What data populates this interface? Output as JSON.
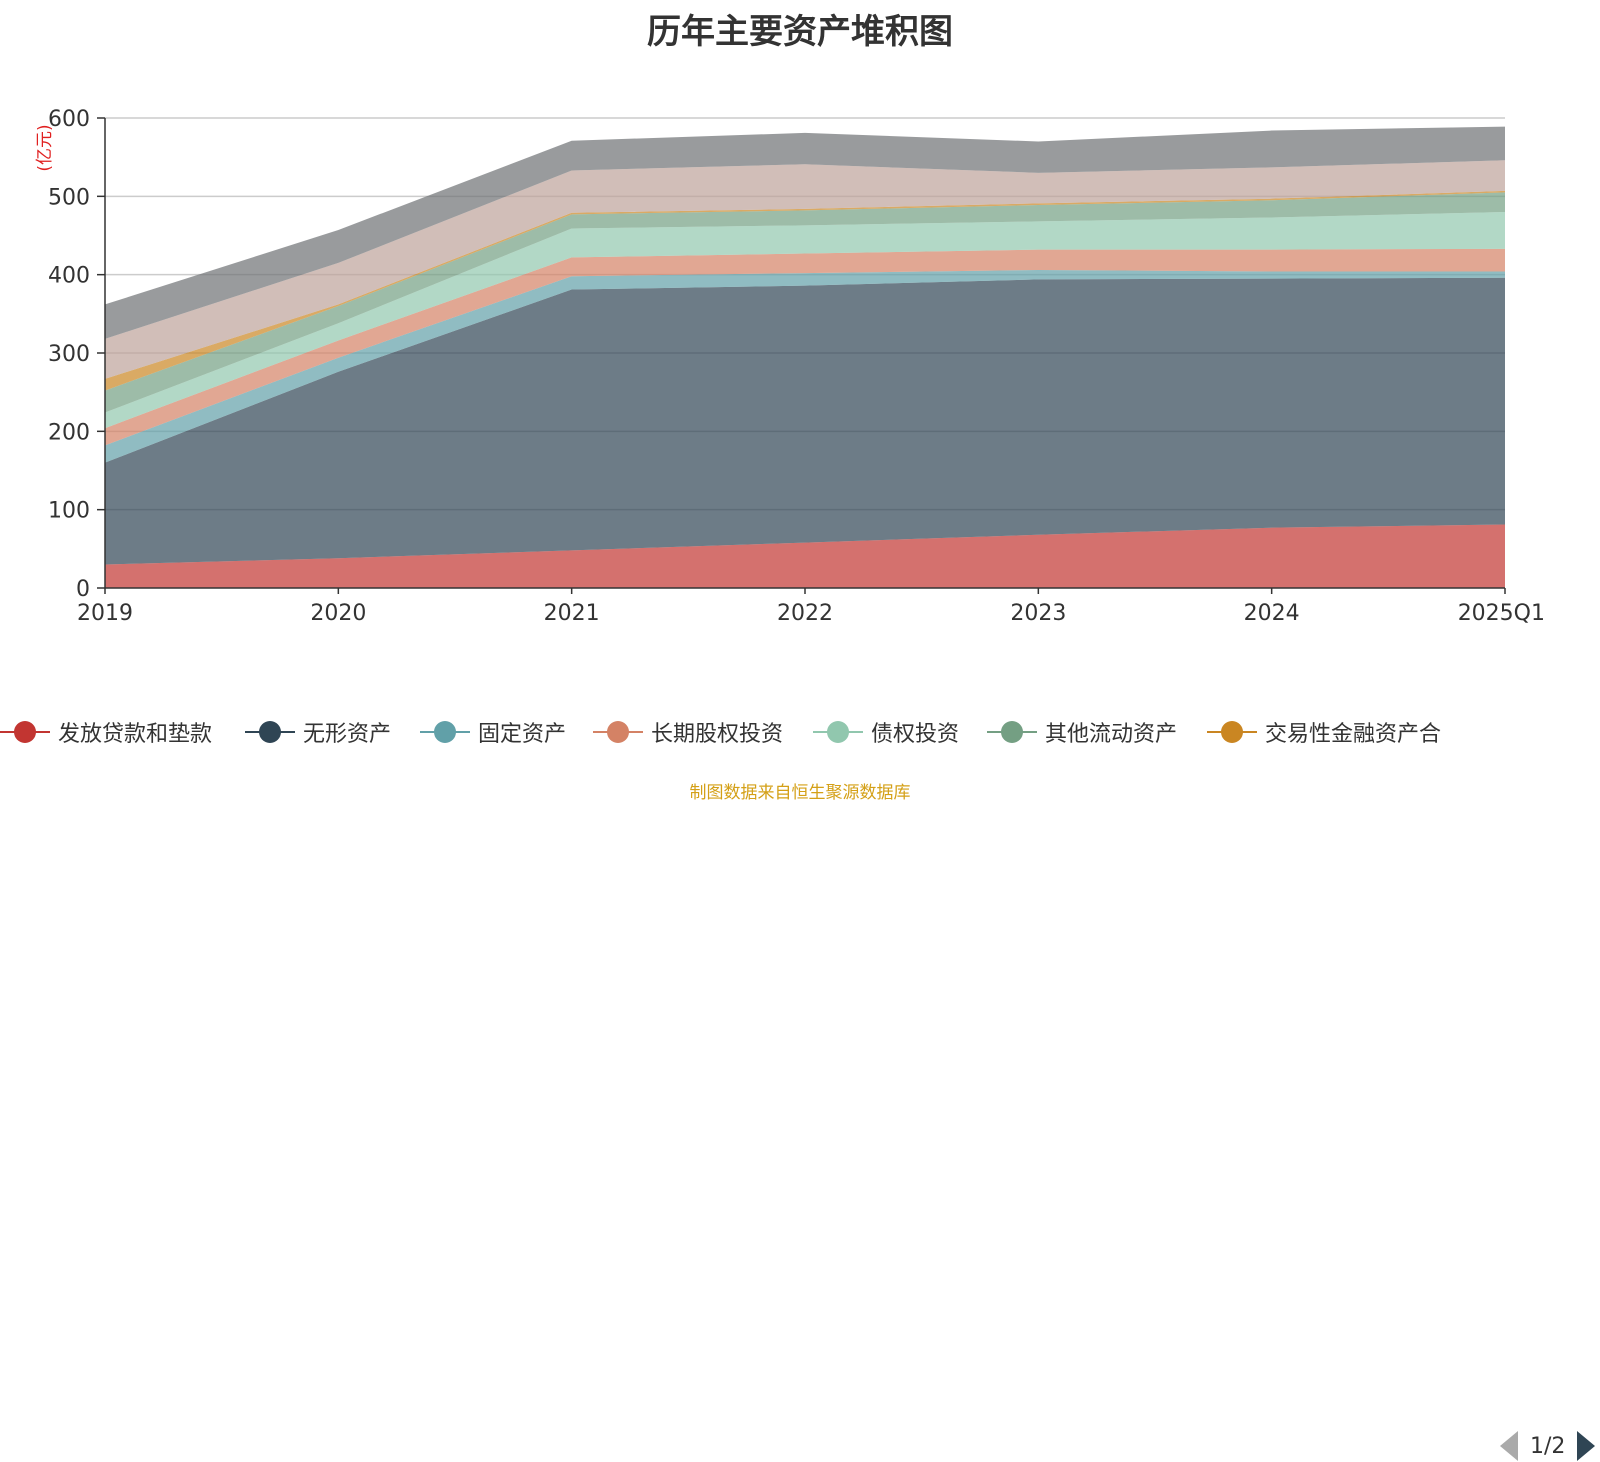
{
  "chart_data": {
    "type": "area",
    "title": "历年主要资产堆积图",
    "ylabel": "(亿元)",
    "ylim": [
      0,
      600
    ],
    "yticks": [
      0,
      100,
      200,
      300,
      400,
      500,
      600
    ],
    "categories": [
      "2019",
      "2020",
      "2021",
      "2022",
      "2023",
      "2024",
      "2025Q1"
    ],
    "stacked": true,
    "grid": true,
    "legend_position": "bottom",
    "series": [
      {
        "name": "发放贷款和垫款",
        "color": "#c23531",
        "values": [
          30,
          38,
          48,
          58,
          68,
          77,
          81
        ]
      },
      {
        "name": "无形资产",
        "color": "#2f4554",
        "values": [
          130,
          238,
          333,
          328,
          326,
          318,
          315
        ]
      },
      {
        "name": "固定资产",
        "color": "#61a0a8",
        "values": [
          22,
          18,
          17,
          16,
          12,
          9,
          8
        ]
      },
      {
        "name": "长期股权投资",
        "color": "#d48265",
        "values": [
          22,
          22,
          24,
          25,
          26,
          28,
          29
        ]
      },
      {
        "name": "债权投资",
        "color": "#91c7ae",
        "values": [
          20,
          22,
          37,
          36,
          36,
          41,
          47
        ]
      },
      {
        "name": "其他流动资产",
        "color": "#749f83",
        "values": [
          28,
          22,
          18,
          19,
          21,
          22,
          25
        ]
      },
      {
        "name": "交易性金融资产合",
        "color": "#ca8622",
        "values": [
          15,
          2,
          2,
          2,
          2,
          2,
          2
        ]
      },
      {
        "name": "",
        "color": "#bda29a",
        "values": [
          51,
          53,
          54,
          57,
          39,
          40,
          39
        ]
      },
      {
        "name": "",
        "color": "#6e7074",
        "values": [
          44,
          42,
          38,
          40,
          40,
          47,
          43
        ]
      }
    ]
  },
  "legend": {
    "items": [
      {
        "label": "发放贷款和垫款",
        "color": "#c23531"
      },
      {
        "label": "无形资产",
        "color": "#2f4554"
      },
      {
        "label": "固定资产",
        "color": "#61a0a8"
      },
      {
        "label": "长期股权投资",
        "color": "#d48265"
      },
      {
        "label": "债权投资",
        "color": "#91c7ae"
      },
      {
        "label": "其他流动资产",
        "color": "#749f83"
      },
      {
        "label": "交易性金融资产合",
        "color": "#ca8622"
      }
    ],
    "page": "1/2"
  },
  "source_note": "制图数据来自恒生聚源数据库"
}
